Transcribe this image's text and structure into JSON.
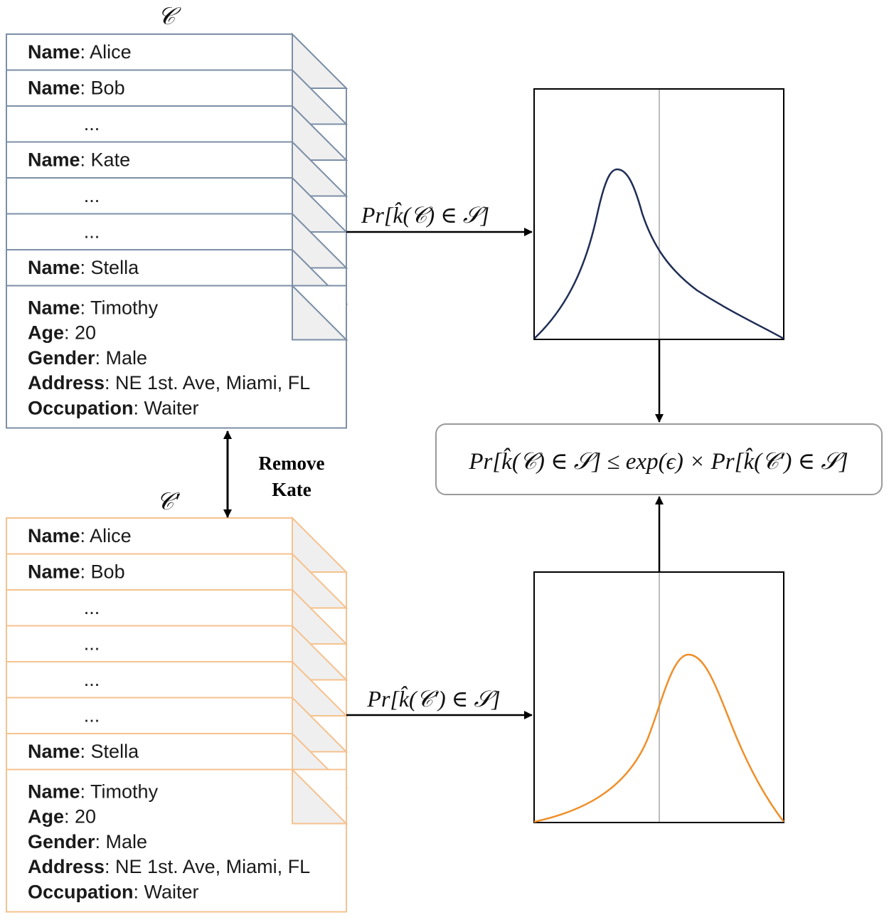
{
  "collections": {
    "original": {
      "label": "𝒞",
      "color": "#7c8fa6",
      "records": [
        {
          "kind": "name",
          "key": "Name",
          "value": "Alice"
        },
        {
          "kind": "name",
          "key": "Name",
          "value": "Bob"
        },
        {
          "kind": "ellipsis",
          "value": "..."
        },
        {
          "kind": "name",
          "key": "Name",
          "value": "Kate"
        },
        {
          "kind": "ellipsis",
          "value": "..."
        },
        {
          "kind": "ellipsis",
          "value": "..."
        },
        {
          "kind": "name",
          "key": "Name",
          "value": "Stella"
        }
      ],
      "detail": [
        {
          "key": "Name",
          "value": "Timothy"
        },
        {
          "key": "Age",
          "value": "20"
        },
        {
          "key": "Gender",
          "value": "Male"
        },
        {
          "key": "Address",
          "value": "NE 1st. Ave, Miami, FL"
        },
        {
          "key": "Occupation",
          "value": "Waiter"
        }
      ]
    },
    "neighbor": {
      "label": "𝒞′",
      "color": "#f5c28f",
      "records": [
        {
          "kind": "name",
          "key": "Name",
          "value": "Alice"
        },
        {
          "kind": "name",
          "key": "Name",
          "value": "Bob"
        },
        {
          "kind": "ellipsis",
          "value": "..."
        },
        {
          "kind": "ellipsis",
          "value": "..."
        },
        {
          "kind": "ellipsis",
          "value": "..."
        },
        {
          "kind": "ellipsis",
          "value": "..."
        },
        {
          "kind": "name",
          "key": "Name",
          "value": "Stella"
        }
      ],
      "detail": [
        {
          "key": "Name",
          "value": "Timothy"
        },
        {
          "key": "Age",
          "value": "20"
        },
        {
          "key": "Gender",
          "value": "Male"
        },
        {
          "key": "Address",
          "value": "NE 1st. Ave, Miami, FL"
        },
        {
          "key": "Occupation",
          "value": "Waiter"
        }
      ]
    }
  },
  "operation": {
    "line1": "Remove",
    "line2": "Kate"
  },
  "arrows": {
    "top_label": "Pr[k̂(𝒞) ∈ 𝒮]",
    "bottom_label": "Pr[k̂(𝒞′) ∈ 𝒮]"
  },
  "inequality": "Pr[k̂(𝒞) ∈ 𝒮] ≤ exp(ϵ) × Pr[k̂(𝒞′) ∈ 𝒮]",
  "distributions": {
    "top": {
      "color": "#1f2d56",
      "shape": "right-skewed peak, left of threshold"
    },
    "bottom": {
      "color": "#ef8f2a",
      "shape": "left-skewed peak, right of threshold"
    },
    "threshold_color": "#bdbdbd"
  }
}
